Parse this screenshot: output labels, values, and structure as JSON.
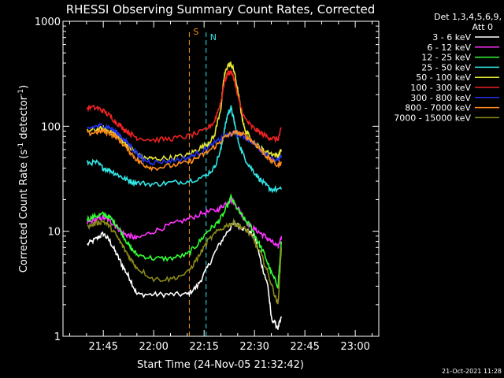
{
  "chart_data": {
    "type": "line",
    "title": "RHESSI Observing Summary Count Rates, Corrected",
    "xlabel": "Start Time (24-Nov-05 21:32:42)",
    "ylabel_parts": [
      "Corrected Count Rate (s",
      "-1",
      " detector",
      "-1",
      ")"
    ],
    "yscale": "log",
    "ylim": [
      1,
      1000
    ],
    "y_ticks": [
      1,
      10,
      100,
      1000
    ],
    "y_tick_labels": [
      "1",
      "10",
      "100",
      "1000"
    ],
    "xlim_min": [
      -12,
      82
    ],
    "x_ticks_min": [
      0,
      15,
      30,
      45,
      60,
      75
    ],
    "x_tick_labels": [
      "21:45",
      "22:00",
      "22:15",
      "22:30",
      "22:45",
      "23:00"
    ],
    "legend_placement": "right",
    "legend_header": [
      "Det 1,3,4,5,6,9,",
      "Att 0"
    ],
    "footer": "21-Oct-2021 11:28",
    "markers": [
      {
        "label": "S",
        "x_min": 25.6,
        "color": "#ff8c1a"
      },
      {
        "label": "N",
        "x_min": 30.6,
        "color": "#33e6e6"
      }
    ],
    "series": [
      {
        "name": "3 - 6 keV",
        "color": "#ffffff",
        "points": [
          [
            -4.8,
            7.5
          ],
          [
            -2,
            8.5
          ],
          [
            0,
            9.5
          ],
          [
            2,
            8
          ],
          [
            4,
            6
          ],
          [
            6,
            4.5
          ],
          [
            8,
            3.5
          ],
          [
            10,
            2.5
          ],
          [
            15,
            2.5
          ],
          [
            20,
            2.5
          ],
          [
            25,
            2.5
          ],
          [
            28,
            3
          ],
          [
            31,
            4.5
          ],
          [
            34,
            7
          ],
          [
            37,
            10
          ],
          [
            39,
            12
          ],
          [
            41,
            11
          ],
          [
            43,
            10
          ],
          [
            45,
            9
          ],
          [
            47,
            5
          ],
          [
            49,
            3
          ],
          [
            50,
            1.5
          ],
          [
            52,
            1.2
          ],
          [
            53,
            1.5
          ]
        ]
      },
      {
        "name": "6 - 12 keV",
        "color": "#ff33ff",
        "points": [
          [
            -4.8,
            12
          ],
          [
            -2,
            13
          ],
          [
            0,
            13.5
          ],
          [
            2,
            12.5
          ],
          [
            4,
            11
          ],
          [
            6,
            9.5
          ],
          [
            8,
            9
          ],
          [
            10,
            8.5
          ],
          [
            15,
            10
          ],
          [
            20,
            11.5
          ],
          [
            25,
            13
          ],
          [
            30,
            15
          ],
          [
            34,
            16
          ],
          [
            36,
            18
          ],
          [
            38,
            20
          ],
          [
            40,
            17
          ],
          [
            42,
            13
          ],
          [
            44,
            11
          ],
          [
            46,
            10
          ],
          [
            48,
            9
          ],
          [
            50,
            8
          ],
          [
            52,
            7
          ],
          [
            53,
            9
          ]
        ]
      },
      {
        "name": "12 - 25 keV",
        "color": "#33ff33",
        "points": [
          [
            -4.8,
            13
          ],
          [
            -2,
            14
          ],
          [
            0,
            14.5
          ],
          [
            2,
            13.5
          ],
          [
            4,
            11.5
          ],
          [
            6,
            9
          ],
          [
            8,
            7
          ],
          [
            10,
            6
          ],
          [
            15,
            5.5
          ],
          [
            20,
            5.5
          ],
          [
            25,
            6
          ],
          [
            28,
            7.5
          ],
          [
            31,
            10
          ],
          [
            34,
            12
          ],
          [
            36,
            15
          ],
          [
            38,
            21
          ],
          [
            40,
            16
          ],
          [
            42,
            13
          ],
          [
            44,
            11
          ],
          [
            46,
            8
          ],
          [
            48,
            6
          ],
          [
            50,
            4
          ],
          [
            52,
            3
          ],
          [
            53,
            8
          ]
        ]
      },
      {
        "name": "25 - 50 keV",
        "color": "#33e6e6",
        "points": [
          [
            -4.8,
            45
          ],
          [
            -2,
            45
          ],
          [
            0,
            40
          ],
          [
            2,
            38
          ],
          [
            4,
            35
          ],
          [
            6,
            32
          ],
          [
            8,
            30
          ],
          [
            10,
            29
          ],
          [
            15,
            28
          ],
          [
            20,
            29
          ],
          [
            25,
            30
          ],
          [
            30,
            33
          ],
          [
            33,
            40
          ],
          [
            35,
            60
          ],
          [
            36,
            90
          ],
          [
            37,
            130
          ],
          [
            38,
            150
          ],
          [
            39,
            110
          ],
          [
            40,
            75
          ],
          [
            42,
            50
          ],
          [
            44,
            40
          ],
          [
            46,
            33
          ],
          [
            48,
            28
          ],
          [
            50,
            25
          ],
          [
            53,
            25
          ]
        ]
      },
      {
        "name": "50 - 100 keV",
        "color": "#e6e633",
        "points": [
          [
            -4.8,
            90
          ],
          [
            -2,
            93
          ],
          [
            0,
            95
          ],
          [
            2,
            90
          ],
          [
            4,
            82
          ],
          [
            6,
            72
          ],
          [
            8,
            62
          ],
          [
            10,
            55
          ],
          [
            12,
            50
          ],
          [
            15,
            49
          ],
          [
            20,
            50
          ],
          [
            25,
            53
          ],
          [
            28,
            60
          ],
          [
            31,
            68
          ],
          [
            33,
            80
          ],
          [
            35,
            150
          ],
          [
            36,
            300
          ],
          [
            37,
            380
          ],
          [
            38,
            390
          ],
          [
            39,
            330
          ],
          [
            40,
            220
          ],
          [
            41,
            140
          ],
          [
            42,
            95
          ],
          [
            44,
            75
          ],
          [
            46,
            65
          ],
          [
            48,
            58
          ],
          [
            50,
            55
          ],
          [
            52,
            52
          ],
          [
            53,
            60
          ]
        ]
      },
      {
        "name": "100 - 300 keV",
        "color": "#ee2222",
        "points": [
          [
            -4.8,
            150
          ],
          [
            -2,
            150
          ],
          [
            0,
            140
          ],
          [
            2,
            125
          ],
          [
            4,
            108
          ],
          [
            6,
            95
          ],
          [
            8,
            85
          ],
          [
            10,
            78
          ],
          [
            15,
            74
          ],
          [
            20,
            76
          ],
          [
            25,
            80
          ],
          [
            30,
            90
          ],
          [
            33,
            110
          ],
          [
            35,
            170
          ],
          [
            36,
            260
          ],
          [
            37,
            320
          ],
          [
            38,
            330
          ],
          [
            39,
            280
          ],
          [
            40,
            190
          ],
          [
            42,
            120
          ],
          [
            44,
            100
          ],
          [
            46,
            90
          ],
          [
            48,
            82
          ],
          [
            50,
            77
          ],
          [
            52,
            75
          ],
          [
            53,
            95
          ]
        ]
      },
      {
        "name": "300 - 800 keV",
        "color": "#2233ee",
        "points": [
          [
            -4.8,
            95
          ],
          [
            -2,
            100
          ],
          [
            0,
            102
          ],
          [
            2,
            97
          ],
          [
            4,
            87
          ],
          [
            6,
            76
          ],
          [
            8,
            65
          ],
          [
            10,
            55
          ],
          [
            12,
            48
          ],
          [
            15,
            45
          ],
          [
            20,
            47
          ],
          [
            25,
            50
          ],
          [
            28,
            55
          ],
          [
            31,
            62
          ],
          [
            34,
            72
          ],
          [
            36,
            80
          ],
          [
            38,
            85
          ],
          [
            40,
            85
          ],
          [
            42,
            80
          ],
          [
            44,
            72
          ],
          [
            46,
            63
          ],
          [
            48,
            55
          ],
          [
            50,
            50
          ],
          [
            52,
            47
          ],
          [
            53,
            52
          ]
        ]
      },
      {
        "name": "800 - 7000 keV",
        "color": "#ff8c1a",
        "points": [
          [
            -4.8,
            85
          ],
          [
            -2,
            88
          ],
          [
            0,
            90
          ],
          [
            2,
            86
          ],
          [
            4,
            78
          ],
          [
            6,
            67
          ],
          [
            8,
            57
          ],
          [
            10,
            48
          ],
          [
            12,
            43
          ],
          [
            15,
            40
          ],
          [
            20,
            42
          ],
          [
            25,
            45
          ],
          [
            28,
            50
          ],
          [
            31,
            57
          ],
          [
            34,
            67
          ],
          [
            36,
            78
          ],
          [
            38,
            85
          ],
          [
            40,
            87
          ],
          [
            42,
            82
          ],
          [
            44,
            74
          ],
          [
            46,
            64
          ],
          [
            48,
            54
          ],
          [
            50,
            47
          ],
          [
            52,
            42
          ],
          [
            53,
            46
          ]
        ]
      },
      {
        "name": "7000 - 15000 keV",
        "color": "#8a8a1a",
        "points": [
          [
            -4.8,
            11
          ],
          [
            -2,
            12
          ],
          [
            0,
            12.5
          ],
          [
            2,
            11
          ],
          [
            4,
            9
          ],
          [
            6,
            7
          ],
          [
            8,
            5.5
          ],
          [
            10,
            4.5
          ],
          [
            15,
            3.5
          ],
          [
            20,
            3.5
          ],
          [
            25,
            4
          ],
          [
            28,
            5.5
          ],
          [
            31,
            8
          ],
          [
            34,
            10
          ],
          [
            37,
            11.5
          ],
          [
            39,
            12
          ],
          [
            41,
            11
          ],
          [
            43,
            10
          ],
          [
            45,
            8
          ],
          [
            47,
            6
          ],
          [
            49,
            4
          ],
          [
            51,
            2.5
          ],
          [
            52,
            2
          ],
          [
            53,
            7
          ]
        ]
      }
    ]
  }
}
